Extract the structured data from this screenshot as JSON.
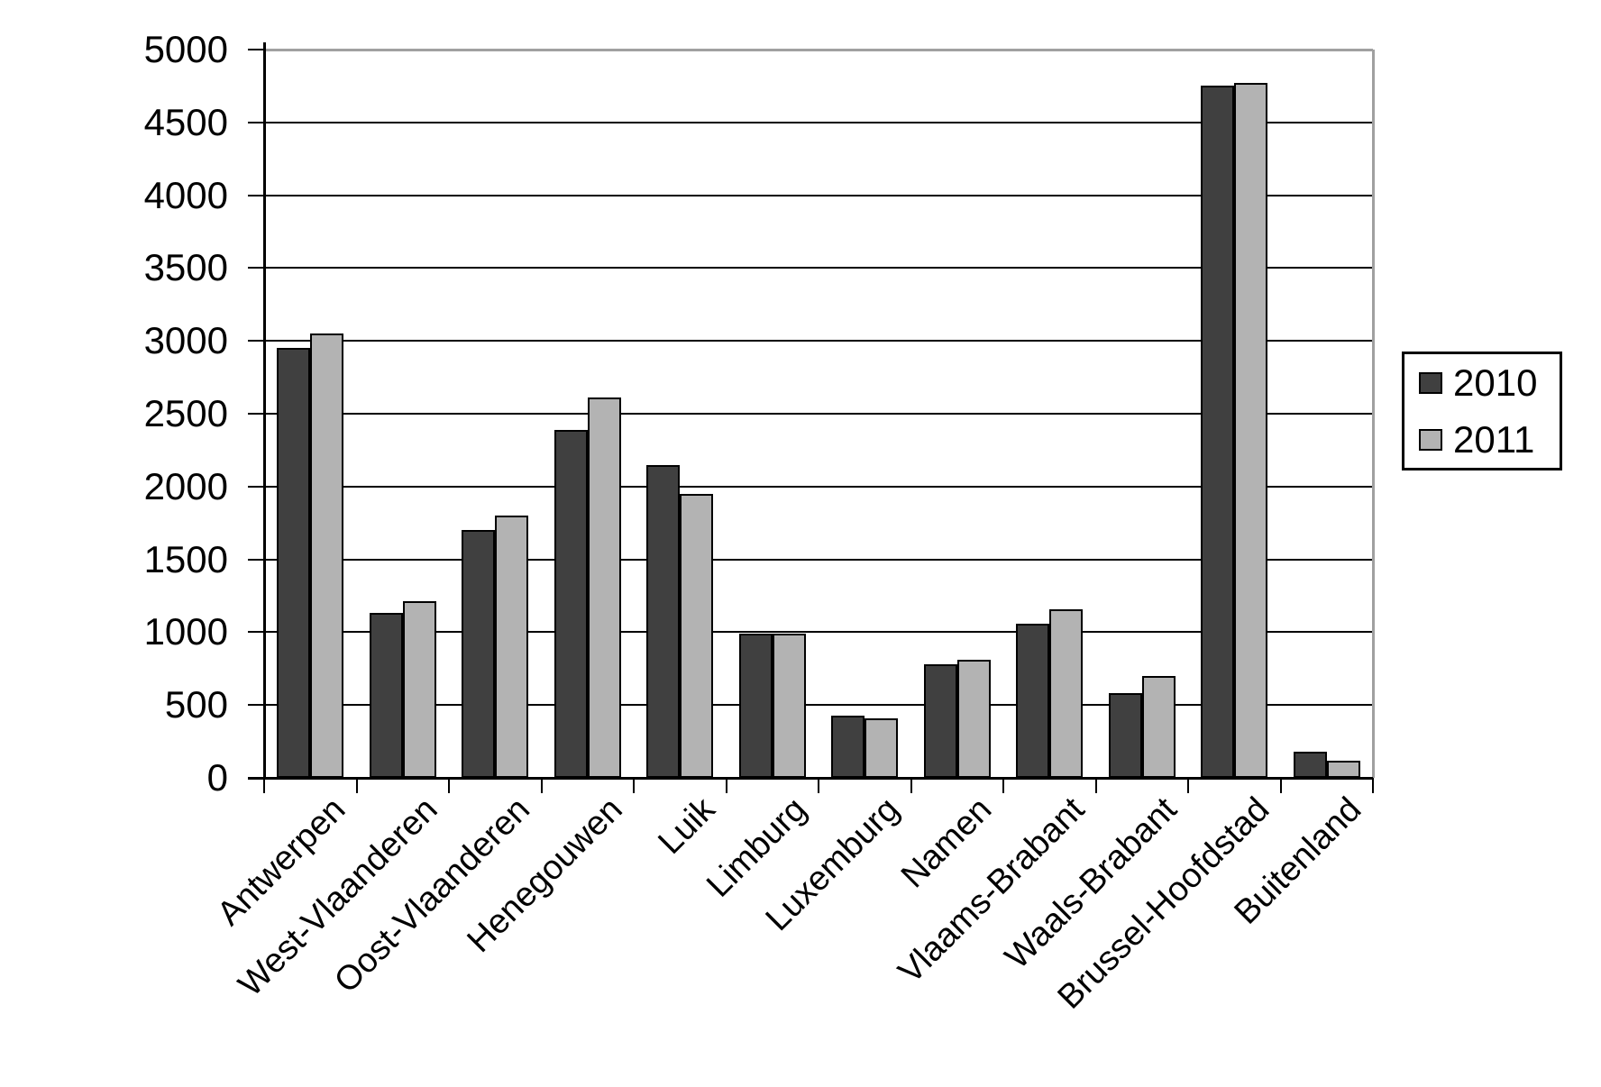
{
  "chart_data": {
    "type": "bar",
    "title": "",
    "xlabel": "",
    "ylabel": "",
    "categories": [
      "Antwerpen",
      "West-Vlaanderen",
      "Oost-Vlaanderen",
      "Henegouwen",
      "Luik",
      "Limburg",
      "Luxemburg",
      "Namen",
      "Vlaams-Brabant",
      "Waals-Brabant",
      "Brussel-Hoofdstad",
      "Buitenland"
    ],
    "series": [
      {
        "name": "2010",
        "color": "#404040",
        "values": [
          2950,
          1130,
          1700,
          2390,
          2150,
          990,
          430,
          780,
          1060,
          580,
          4750,
          180
        ]
      },
      {
        "name": "2011",
        "color": "#b3b3b3",
        "values": [
          3050,
          1210,
          1800,
          2610,
          1950,
          990,
          410,
          810,
          1160,
          700,
          4770,
          120
        ]
      }
    ],
    "ylim": [
      0,
      5000
    ],
    "ytick_interval": 500,
    "ytick_labels": [
      "0",
      "500",
      "1000",
      "1500",
      "2000",
      "2500",
      "3000",
      "3500",
      "4000",
      "4500",
      "5000"
    ],
    "grid": "horizontal",
    "legend_position": "right",
    "colors": {
      "gridline": "#000000",
      "axis": "#000000",
      "plot_border": "#a0a0a0",
      "background": "#ffffff",
      "text": "#000000"
    }
  }
}
